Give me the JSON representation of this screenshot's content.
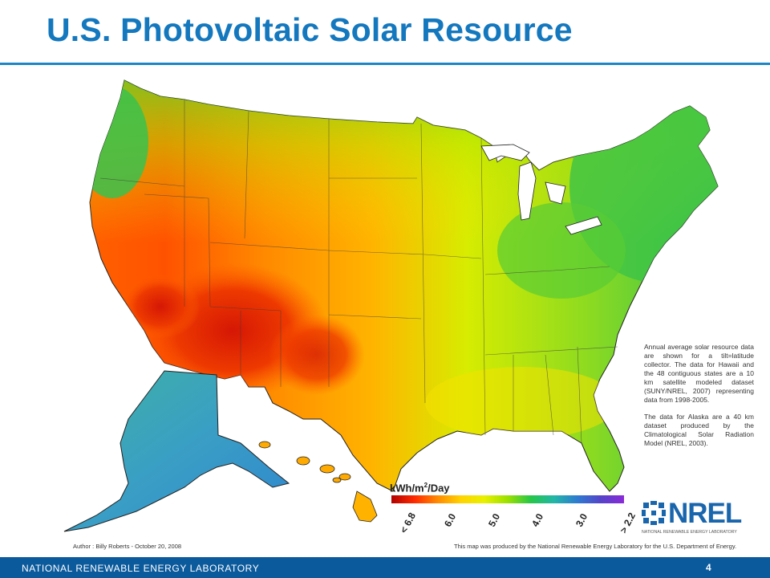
{
  "slide": {
    "title": "U.S. Photovoltaic Solar Resource",
    "page_number": "4",
    "footer_org": "NATIONAL RENEWABLE ENERGY LABORATORY"
  },
  "map": {
    "info_text_1": "Annual average solar resource data are shown for a tilt=latitude collector. The data for Hawaii and the 48 contiguous states are a 10 km satellite modeled dataset (SUNY/NREL, 2007) representing data from 1998-2005.",
    "info_text_2": "The data for Alaska are a 40 km dataset produced by the Climatological Solar Radiation Model (NREL, 2003).",
    "author": "Author : Billy Roberts - October 20, 2008",
    "credit": "This map was produced by the National Renewable Energy Laboratory for the U.S. Department of Energy.",
    "legend": {
      "unit_prefix": "kWh/m",
      "unit_sup": "2",
      "unit_suffix": "/Day",
      "ticks": [
        "< 6.8",
        "6.0",
        "5.0",
        "4.0",
        "3.0",
        "> 2.2"
      ]
    },
    "colors": {
      "very_high": "#d01a08",
      "high": "#ff6a00",
      "medium_high": "#ffc000",
      "medium": "#e6ee00",
      "medium_low": "#7cd82a",
      "low": "#2fbf5a",
      "alaska": "#3aa3b8"
    }
  },
  "logo": {
    "text": "NREL",
    "subtitle": "NATIONAL RENEWABLE ENERGY LABORATORY"
  }
}
